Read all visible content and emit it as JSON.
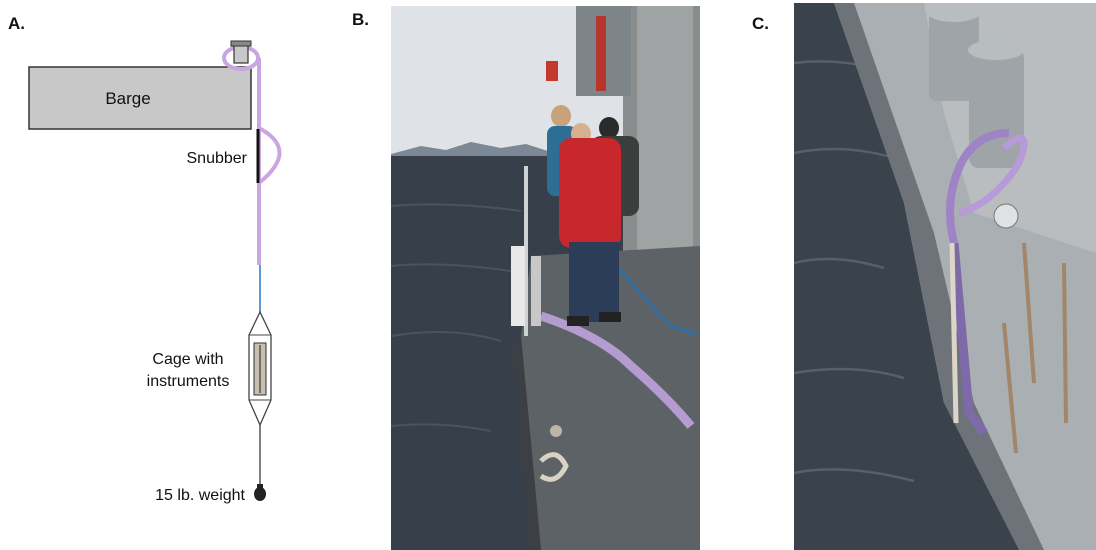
{
  "panels": {
    "a": {
      "letter": "A.",
      "labels": {
        "barge": "Barge",
        "snubber": "Snubber",
        "cage_line1": "Cage with",
        "cage_line2": "instruments",
        "weight": "15 lb. weight"
      }
    },
    "b": {
      "letter": "B."
    },
    "c": {
      "letter": "C."
    }
  },
  "colors": {
    "barge_fill": "#c8c8c8",
    "rope": "#c9a6e0",
    "cable": "#5b9bd5",
    "snubber": "#111111",
    "water": "#37404a",
    "deck": "#5d6266",
    "sky": "#dfe2e6"
  }
}
